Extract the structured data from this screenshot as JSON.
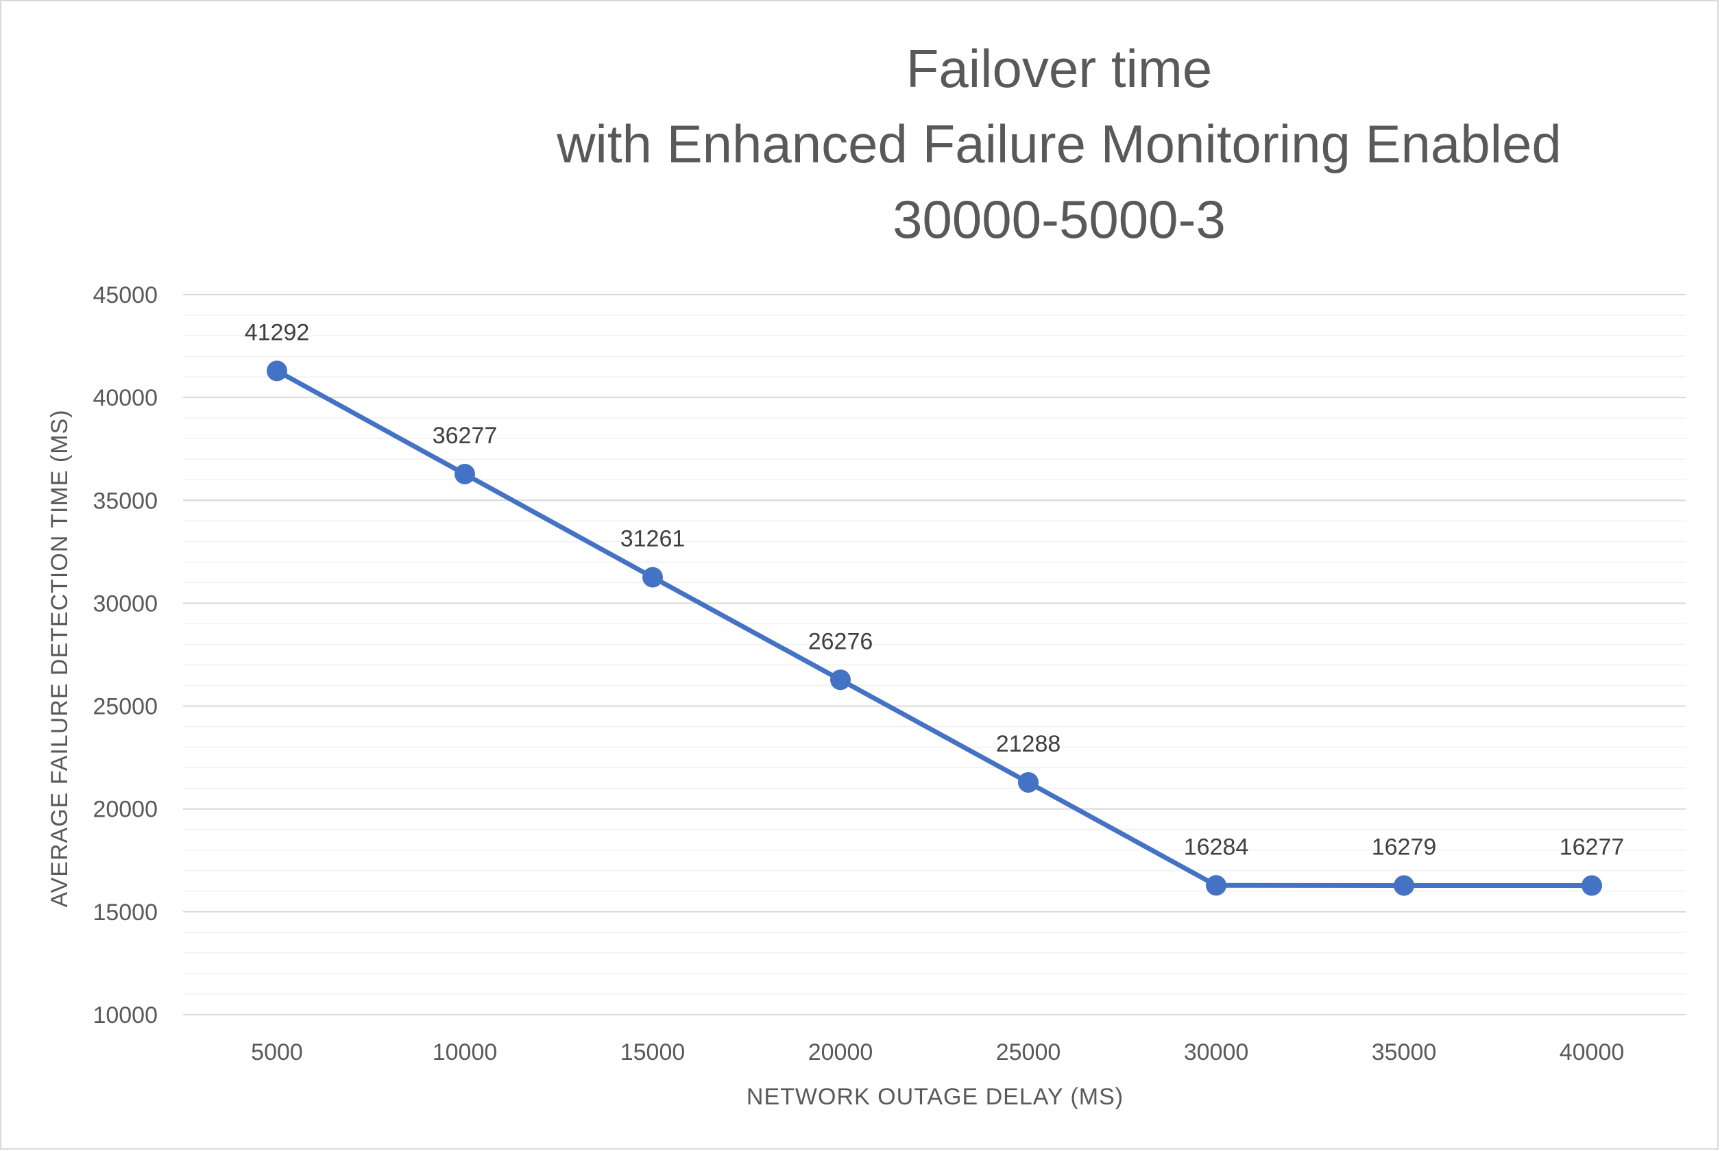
{
  "chart_data": {
    "type": "line",
    "title": [
      "Failover time",
      "with Enhanced Failure Monitoring Enabled",
      "30000-5000-3"
    ],
    "xlabel": "NETWORK OUTAGE DELAY (MS)",
    "ylabel": "AVERAGE FAILURE DETECTION TIME (MS)",
    "categories": [
      "5000",
      "10000",
      "15000",
      "20000",
      "25000",
      "30000",
      "35000",
      "40000"
    ],
    "series": [
      {
        "values": [
          41292,
          36277,
          31261,
          26276,
          21288,
          16284,
          16279,
          16277
        ],
        "color": "#4472c4"
      }
    ],
    "ylim": [
      10000,
      45000
    ],
    "yticks": [
      "10000",
      "15000",
      "20000",
      "25000",
      "30000",
      "35000",
      "40000",
      "45000"
    ],
    "grid": true,
    "minor_grid": true,
    "legend": "none",
    "data_labels": [
      "41292",
      "36277",
      "31261",
      "26276",
      "21288",
      "16284",
      "16279",
      "16277"
    ]
  }
}
